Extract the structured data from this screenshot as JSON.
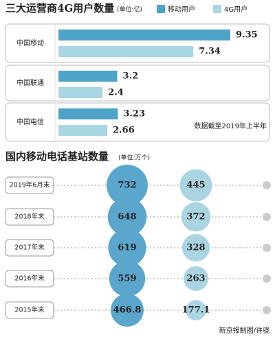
{
  "chart_data": [
    {
      "type": "hbar",
      "title": "三大运营商4G用户数量",
      "subtitle": "(单位:亿)",
      "categories": [
        "中国移动",
        "中国联通",
        "中国电信"
      ],
      "series": [
        {
          "name": "移动用户",
          "color": "#4ea3c8",
          "values": [
            9.35,
            3.2,
            3.23
          ]
        },
        {
          "name": "4G用户",
          "color": "#a8d6e2",
          "values": [
            7.34,
            2.4,
            2.66
          ]
        }
      ],
      "annotation": "数据截至2019年上半年"
    },
    {
      "type": "bubble",
      "title": "国内移动电话基站数量",
      "subtitle": "(单位:万个)",
      "categories": [
        "2019年6月末",
        "2018年末",
        "2017年末",
        "2016年末",
        "2015年末"
      ],
      "series": [
        {
          "color": "#5aa6cd",
          "values": [
            732,
            648,
            619,
            559,
            466.8
          ]
        },
        {
          "color": "#abd4e3",
          "values": [
            445,
            372,
            328,
            263,
            177.1
          ]
        }
      ],
      "credit": "新京报制图/许骁"
    }
  ]
}
